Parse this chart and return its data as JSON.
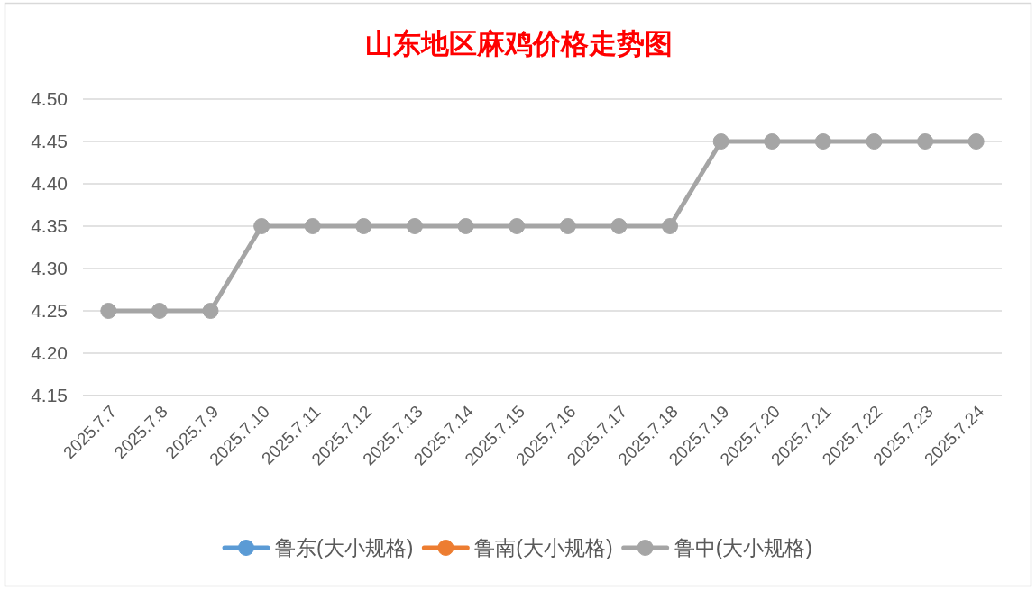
{
  "chart_data": {
    "type": "line",
    "title": "山东地区麻鸡价格走势图",
    "categories": [
      "2025.7.7",
      "2025.7.8",
      "2025.7.9",
      "2025.7.10",
      "2025.7.11",
      "2025.7.12",
      "2025.7.13",
      "2025.7.14",
      "2025.7.15",
      "2025.7.16",
      "2025.7.17",
      "2025.7.18",
      "2025.7.19",
      "2025.7.20",
      "2025.7.21",
      "2025.7.22",
      "2025.7.23",
      "2025.7.24"
    ],
    "series": [
      {
        "name": "鲁东(大小规格)",
        "color": "#5b9bd5",
        "values": [
          null,
          null,
          null,
          null,
          null,
          null,
          null,
          null,
          null,
          null,
          null,
          null,
          null,
          null,
          null,
          null,
          null,
          null
        ]
      },
      {
        "name": "鲁南(大小规格)",
        "color": "#ed7d31",
        "values": [
          null,
          null,
          null,
          null,
          null,
          null,
          null,
          null,
          null,
          null,
          null,
          null,
          null,
          null,
          null,
          null,
          null,
          null
        ]
      },
      {
        "name": "鲁中(大小规格)",
        "color": "#a5a5a5",
        "values": [
          4.25,
          4.25,
          4.25,
          4.35,
          4.35,
          4.35,
          4.35,
          4.35,
          4.35,
          4.35,
          4.35,
          4.35,
          4.45,
          4.45,
          4.45,
          4.45,
          4.45,
          4.45
        ]
      }
    ],
    "ylim": [
      4.15,
      4.5
    ],
    "yticks": [
      4.15,
      {
        "value": 4.2,
        "label": "4.20"
      },
      4.25,
      {
        "value": 4.3,
        "label": "4.30"
      },
      4.35,
      {
        "value": 4.4,
        "label": "4.40"
      },
      4.45,
      {
        "value": 4.5,
        "label": "4.50"
      }
    ],
    "grid": "y",
    "legend": "bottom",
    "marker": "circle"
  }
}
